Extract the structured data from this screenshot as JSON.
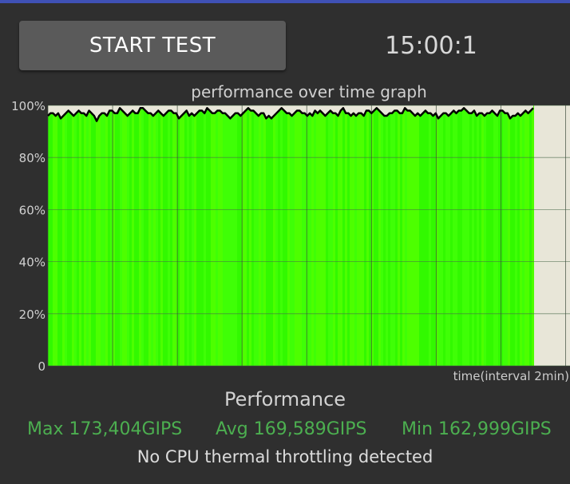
{
  "header": {
    "start_button_label": "START TEST",
    "timer": "15:00:1"
  },
  "chart_data": {
    "type": "area",
    "title": "performance over time graph",
    "xlabel": "time(interval 2min)",
    "ylabel": "",
    "yticks": [
      "0",
      "20%",
      "40%",
      "60%",
      "80%",
      "100%"
    ],
    "ylim": [
      0,
      100
    ],
    "x_interval_minutes": 2,
    "x_total_minutes": 15,
    "grid": true,
    "fill_color": "#39ff00",
    "line_color": "#000000",
    "empty_area_color": "#e8e6d8",
    "series": [
      {
        "values": [
          96,
          97,
          97,
          96,
          97,
          95,
          96,
          97,
          98,
          97,
          96,
          97,
          98,
          97,
          97,
          96,
          98,
          97,
          96,
          94,
          96,
          97,
          97,
          96,
          98,
          98,
          97,
          97,
          99,
          98,
          97,
          96,
          97,
          98,
          97,
          97,
          99,
          99,
          98,
          97,
          97,
          96,
          97,
          98,
          97,
          96,
          97,
          98,
          98,
          97,
          97,
          95,
          96,
          97,
          98,
          96,
          97,
          96,
          97,
          98,
          98,
          97,
          99,
          98,
          97,
          97,
          98,
          98,
          97,
          97,
          96,
          95,
          96,
          97,
          97,
          96,
          97,
          98,
          99,
          98,
          98,
          97,
          96,
          97,
          97,
          95,
          96,
          95,
          96,
          97,
          98,
          99,
          98,
          97,
          97,
          96,
          97,
          98,
          98,
          97,
          97,
          96,
          97,
          96,
          98,
          97,
          98,
          97,
          96,
          97,
          98,
          97,
          97,
          96,
          98,
          99,
          97,
          97,
          96,
          97,
          96,
          97,
          97,
          96,
          98,
          98,
          97,
          98,
          99,
          98,
          97,
          96,
          96,
          97,
          97,
          98,
          98,
          97,
          97,
          99,
          98,
          98,
          97,
          96,
          97,
          96,
          97,
          98,
          97,
          97,
          96,
          97,
          95,
          96,
          97,
          97,
          96,
          97,
          98,
          97,
          98,
          98,
          99,
          98,
          97,
          97,
          98,
          96,
          97,
          97,
          96,
          97,
          97,
          98,
          97,
          96,
          98,
          98,
          97,
          97,
          95,
          96,
          96,
          97,
          96,
          97,
          98,
          97,
          98,
          99
        ]
      }
    ]
  },
  "stats": {
    "title": "Performance",
    "max": "Max 173,404GIPS",
    "avg": "Avg 169,589GIPS",
    "min": "Min 162,999GIPS",
    "status_message": "No CPU thermal throttling detected"
  }
}
